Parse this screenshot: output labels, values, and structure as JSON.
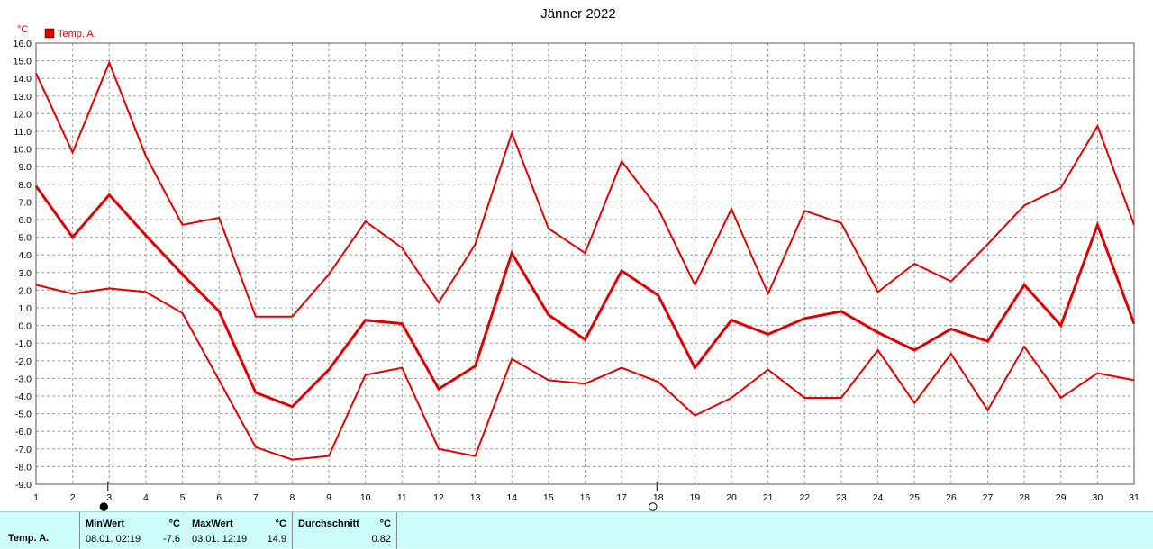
{
  "chart_data": {
    "type": "line",
    "title": "Jänner 2022",
    "ylabel": "°C",
    "xlabel": "",
    "ylim": [
      -9.0,
      16.0
    ],
    "xlim": [
      1,
      31
    ],
    "y_ticks": [
      "16.0",
      "15.0",
      "14.0",
      "13.0",
      "12.0",
      "11.0",
      "10.0",
      "9.0",
      "8.0",
      "7.0",
      "6.0",
      "5.0",
      "4.0",
      "3.0",
      "2.0",
      "1.0",
      "0.0",
      "-1.0",
      "-2.0",
      "-3.0",
      "-4.0",
      "-5.0",
      "-6.0",
      "-7.0",
      "-8.0",
      "-9.0"
    ],
    "x_ticks": [
      "1",
      "2",
      "3",
      "4",
      "5",
      "6",
      "7",
      "8",
      "9",
      "10",
      "11",
      "12",
      "13",
      "14",
      "15",
      "16",
      "17",
      "18",
      "19",
      "20",
      "21",
      "22",
      "23",
      "24",
      "25",
      "26",
      "27",
      "28",
      "29",
      "30",
      "31"
    ],
    "grid": true,
    "legend": {
      "position": "top-left",
      "entries": [
        {
          "name": "Temp. A.",
          "color": "#dd0000"
        }
      ]
    },
    "x": [
      1,
      2,
      3,
      4,
      5,
      6,
      7,
      8,
      9,
      10,
      11,
      12,
      13,
      14,
      15,
      16,
      17,
      18,
      19,
      20,
      21,
      22,
      23,
      24,
      25,
      26,
      27,
      28,
      29,
      30,
      31
    ],
    "series": [
      {
        "role": "max",
        "color": "#dd0000",
        "width": 2,
        "values": [
          14.3,
          9.8,
          14.9,
          9.6,
          5.7,
          6.1,
          0.5,
          0.5,
          2.9,
          5.9,
          4.4,
          1.3,
          4.6,
          10.9,
          5.5,
          4.1,
          9.3,
          6.6,
          2.3,
          6.6,
          1.8,
          6.5,
          5.8,
          1.9,
          3.5,
          2.5,
          4.6,
          6.8,
          7.8,
          11.3,
          5.7
        ]
      },
      {
        "role": "mean",
        "color": "#dd0000",
        "width": 3,
        "values": [
          7.9,
          5.0,
          7.4,
          5.1,
          2.9,
          0.8,
          -3.8,
          -4.6,
          -2.5,
          0.3,
          0.1,
          -3.6,
          -2.3,
          4.1,
          0.6,
          -0.8,
          3.1,
          1.7,
          -2.4,
          0.3,
          -0.5,
          0.4,
          0.8,
          -0.4,
          -1.4,
          -0.2,
          -0.9,
          2.3,
          0.0,
          5.7,
          0.1
        ]
      },
      {
        "role": "min",
        "color": "#dd0000",
        "width": 2,
        "values": [
          2.3,
          1.8,
          2.1,
          1.9,
          0.7,
          -3.1,
          -6.9,
          -7.6,
          -7.4,
          -2.8,
          -2.4,
          -7.0,
          -7.4,
          -1.9,
          -3.1,
          -3.3,
          -2.4,
          -3.2,
          -5.1,
          -4.1,
          -2.5,
          -4.1,
          -4.1,
          -1.4,
          -4.4,
          -1.6,
          -4.8,
          -1.2,
          -4.1,
          -2.7,
          -3.1
        ]
      }
    ],
    "markers": [
      {
        "x": 3,
        "symbol": "full-moon-icon"
      },
      {
        "x": 18,
        "symbol": "new-moon-icon"
      }
    ]
  },
  "footer": {
    "series_label": "Temp. A.",
    "min": {
      "header": "MinWert",
      "unit": "°C",
      "date": "08.01.  02:19",
      "value": "-7.6"
    },
    "max": {
      "header": "MaxWert",
      "unit": "°C",
      "date": "03.01.  12:19",
      "value": "14.9"
    },
    "avg": {
      "header": "Durchschnitt",
      "unit": "°C",
      "value": "0.82"
    }
  }
}
